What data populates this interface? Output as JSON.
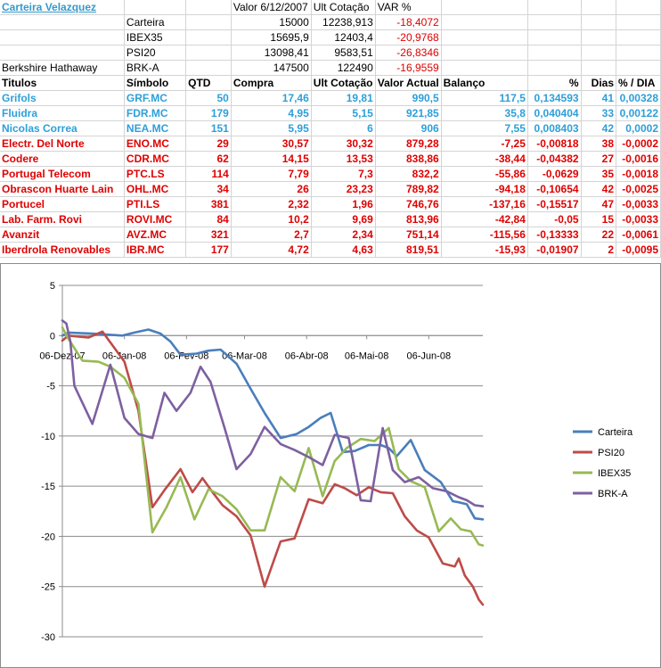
{
  "summary": {
    "title": "Carteira Velazquez",
    "col_headers": [
      "Valor 6/12/2007",
      "Ult Cotação",
      "VAR %"
    ],
    "rows": [
      {
        "name": "",
        "ticker": "Carteira",
        "valor": "15000",
        "ult": "12238,913",
        "var": "-18,4072"
      },
      {
        "name": "",
        "ticker": "IBEX35",
        "valor": "15695,9",
        "ult": "12403,4",
        "var": "-20,9768"
      },
      {
        "name": "",
        "ticker": "PSI20",
        "valor": "13098,41",
        "ult": "9583,51",
        "var": "-26,8346"
      },
      {
        "name": "Berkshire Hathaway",
        "ticker": "BRK-A",
        "valor": "147500",
        "ult": "122490",
        "var": "-16,9559"
      }
    ]
  },
  "table": {
    "headers": [
      "Titulos",
      "Símbolo",
      "QTD",
      "Compra",
      "Ult Cotação",
      "Valor Actual",
      "Balanço",
      "%",
      "Dias",
      "% / DIA"
    ],
    "rows": [
      {
        "color": "blue",
        "cells": [
          "Grifols",
          "GRF.MC",
          "50",
          "17,46",
          "19,81",
          "990,5",
          "117,5",
          "0,134593",
          "41",
          "0,00328"
        ]
      },
      {
        "color": "blue",
        "cells": [
          "Fluidra",
          "FDR.MC",
          "179",
          "4,95",
          "5,15",
          "921,85",
          "35,8",
          "0,040404",
          "33",
          "0,00122"
        ]
      },
      {
        "color": "blue",
        "cells": [
          "Nicolas Correa",
          "NEA.MC",
          "151",
          "5,95",
          "6",
          "906",
          "7,55",
          "0,008403",
          "42",
          "0,0002"
        ]
      },
      {
        "color": "red",
        "cells": [
          "Electr. Del Norte",
          "ENO.MC",
          "29",
          "30,57",
          "30,32",
          "879,28",
          "-7,25",
          "-0,00818",
          "38",
          "-0,0002"
        ]
      },
      {
        "color": "red",
        "cells": [
          "Codere",
          "CDR.MC",
          "62",
          "14,15",
          "13,53",
          "838,86",
          "-38,44",
          "-0,04382",
          "27",
          "-0,0016"
        ]
      },
      {
        "color": "red",
        "cells": [
          "Portugal Telecom",
          "PTC.LS",
          "114",
          "7,79",
          "7,3",
          "832,2",
          "-55,86",
          "-0,0629",
          "35",
          "-0,0018"
        ]
      },
      {
        "color": "red",
        "cells": [
          "Obrascon Huarte Lain",
          "OHL.MC",
          "34",
          "26",
          "23,23",
          "789,82",
          "-94,18",
          "-0,10654",
          "42",
          "-0,0025"
        ]
      },
      {
        "color": "red",
        "cells": [
          "Portucel",
          "PTI.LS",
          "381",
          "2,32",
          "1,96",
          "746,76",
          "-137,16",
          "-0,15517",
          "47",
          "-0,0033"
        ]
      },
      {
        "color": "red",
        "cells": [
          "Lab. Farm. Rovi",
          "ROVI.MC",
          "84",
          "10,2",
          "9,69",
          "813,96",
          "-42,84",
          "-0,05",
          "15",
          "-0,0033"
        ]
      },
      {
        "color": "red",
        "cells": [
          "Avanzit",
          "AVZ.MC",
          "321",
          "2,7",
          "2,34",
          "751,14",
          "-115,56",
          "-0,13333",
          "22",
          "-0,0061"
        ]
      },
      {
        "color": "red",
        "cells": [
          "Iberdrola Renovables",
          "IBR.MC",
          "177",
          "4,72",
          "4,63",
          "819,51",
          "-15,93",
          "-0,01907",
          "2",
          "-0,0095"
        ]
      }
    ]
  },
  "colors": {
    "carteira": "#4a7ebb",
    "psi20": "#be4b48",
    "ibex35": "#98b954",
    "brka": "#7d60a0"
  },
  "chart_data": {
    "type": "line",
    "title": "",
    "xlabel": "",
    "ylabel": "",
    "ylim": [
      -30,
      5
    ],
    "yticks": [
      5,
      0,
      -5,
      -10,
      -15,
      -20,
      -25,
      -30
    ],
    "xlim": [
      "2007-12-06",
      "2008-07-03"
    ],
    "xticks": [
      "2007-12-06",
      "2008-01-06",
      "2008-02-06",
      "2008-03-06",
      "2008-04-06",
      "2008-05-06",
      "2008-06-06"
    ],
    "xtick_labels": [
      "06-Dez-07",
      "06-Jan-08",
      "06-Fev-08",
      "06-Mar-08",
      "06-Abr-08",
      "06-Mai-08",
      "06-Jun-08"
    ],
    "grid": "horizontal",
    "legend": "right",
    "series": [
      {
        "name": "Carteira",
        "color": "#4a7ebb",
        "x": [
          "2007-12-06",
          "2007-12-09",
          "2007-12-21",
          "2008-01-05",
          "2008-01-11",
          "2008-01-18",
          "2008-01-24",
          "2008-01-29",
          "2008-02-03",
          "2008-02-11",
          "2008-02-17",
          "2008-02-23",
          "2008-03-02",
          "2008-03-09",
          "2008-03-16",
          "2008-03-24",
          "2008-04-01",
          "2008-04-07",
          "2008-04-13",
          "2008-04-18",
          "2008-04-24",
          "2008-04-30",
          "2008-05-07",
          "2008-05-13",
          "2008-05-17",
          "2008-05-21",
          "2008-05-28",
          "2008-06-04",
          "2008-06-12",
          "2008-06-18",
          "2008-06-21",
          "2008-06-25",
          "2008-06-29",
          "2008-07-03"
        ],
        "y": [
          0,
          0.3,
          0.2,
          0,
          0.3,
          0.6,
          0.2,
          -0.6,
          -1.9,
          -1.8,
          -1.5,
          -1.4,
          -2.8,
          -5.3,
          -7.7,
          -10.2,
          -9.8,
          -9.1,
          -8.2,
          -7.7,
          -11.6,
          -11.5,
          -10.9,
          -10.9,
          -11.2,
          -12.0,
          -10.4,
          -13.4,
          -14.6,
          -16.5,
          -16.6,
          -16.8,
          -18.2,
          -18.3
        ]
      },
      {
        "name": "PSI20",
        "color": "#be4b48",
        "x": [
          "2007-12-06",
          "2007-12-09",
          "2007-12-19",
          "2007-12-26",
          "2008-01-06",
          "2008-01-13",
          "2008-01-20",
          "2008-01-26",
          "2008-02-03",
          "2008-02-09",
          "2008-02-14",
          "2008-02-19",
          "2008-02-24",
          "2008-03-02",
          "2008-03-09",
          "2008-03-16",
          "2008-03-24",
          "2008-03-31",
          "2008-04-07",
          "2008-04-14",
          "2008-04-20",
          "2008-04-25",
          "2008-05-01",
          "2008-05-07",
          "2008-05-13",
          "2008-05-19",
          "2008-05-25",
          "2008-05-31",
          "2008-06-06",
          "2008-06-13",
          "2008-06-19",
          "2008-06-21",
          "2008-06-24",
          "2008-06-28",
          "2008-07-01",
          "2008-07-03"
        ],
        "y": [
          -0.5,
          0,
          -0.2,
          0.4,
          -2.6,
          -7.5,
          -17.1,
          -15.4,
          -13.3,
          -15.6,
          -14.2,
          -15.6,
          -16.9,
          -18.0,
          -19.9,
          -25.0,
          -20.5,
          -20.2,
          -16.3,
          -16.7,
          -14.8,
          -15.2,
          -15.9,
          -15.1,
          -15.6,
          -15.7,
          -18.0,
          -19.4,
          -20.1,
          -22.7,
          -23.0,
          -22.2,
          -23.9,
          -25.0,
          -26.3,
          -26.8
        ]
      },
      {
        "name": "IBEX35",
        "color": "#98b954",
        "x": [
          "2007-12-06",
          "2007-12-09",
          "2007-12-16",
          "2007-12-24",
          "2007-12-30",
          "2008-01-06",
          "2008-01-13",
          "2008-01-20",
          "2008-01-27",
          "2008-02-03",
          "2008-02-10",
          "2008-02-17",
          "2008-02-24",
          "2008-03-02",
          "2008-03-09",
          "2008-03-16",
          "2008-03-24",
          "2008-03-31",
          "2008-04-07",
          "2008-04-14",
          "2008-04-20",
          "2008-04-26",
          "2008-05-03",
          "2008-05-10",
          "2008-05-17",
          "2008-05-22",
          "2008-05-28",
          "2008-06-04",
          "2008-06-11",
          "2008-06-17",
          "2008-06-22",
          "2008-06-27",
          "2008-07-01",
          "2008-07-03"
        ],
        "y": [
          0.8,
          -0.3,
          -2.5,
          -2.6,
          -3.1,
          -4.2,
          -6.8,
          -19.6,
          -17.1,
          -14.1,
          -18.3,
          -15.3,
          -16.0,
          -17.3,
          -19.4,
          -19.4,
          -14.1,
          -15.5,
          -11.2,
          -16.0,
          -12.5,
          -11.2,
          -10.3,
          -10.5,
          -9.2,
          -13.3,
          -14.5,
          -15.1,
          -19.5,
          -18.2,
          -19.3,
          -19.5,
          -20.8,
          -20.9
        ]
      },
      {
        "name": "BRK-A",
        "color": "#7d60a0",
        "x": [
          "2007-12-06",
          "2007-12-08",
          "2007-12-10",
          "2007-12-12",
          "2007-12-21",
          "2007-12-30",
          "2008-01-06",
          "2008-01-13",
          "2008-01-20",
          "2008-01-26",
          "2008-02-01",
          "2008-02-08",
          "2008-02-13",
          "2008-02-18",
          "2008-02-25",
          "2008-03-02",
          "2008-03-09",
          "2008-03-16",
          "2008-03-24",
          "2008-03-31",
          "2008-04-07",
          "2008-04-14",
          "2008-04-20",
          "2008-04-27",
          "2008-05-03",
          "2008-05-08",
          "2008-05-14",
          "2008-05-19",
          "2008-05-25",
          "2008-06-01",
          "2008-06-08",
          "2008-06-15",
          "2008-06-21",
          "2008-06-25",
          "2008-06-29",
          "2008-07-03"
        ],
        "y": [
          1.5,
          1.2,
          -0.6,
          -5.0,
          -8.8,
          -2.9,
          -8.2,
          -9.8,
          -10.2,
          -5.7,
          -7.5,
          -5.7,
          -3.1,
          -4.6,
          -9.2,
          -13.3,
          -11.8,
          -9.1,
          -10.8,
          -11.4,
          -12.1,
          -12.9,
          -9.9,
          -10.2,
          -16.4,
          -16.5,
          -9.2,
          -13.4,
          -14.6,
          -14.1,
          -15.2,
          -15.5,
          -16.1,
          -16.4,
          -16.9,
          -17.0
        ]
      }
    ]
  }
}
